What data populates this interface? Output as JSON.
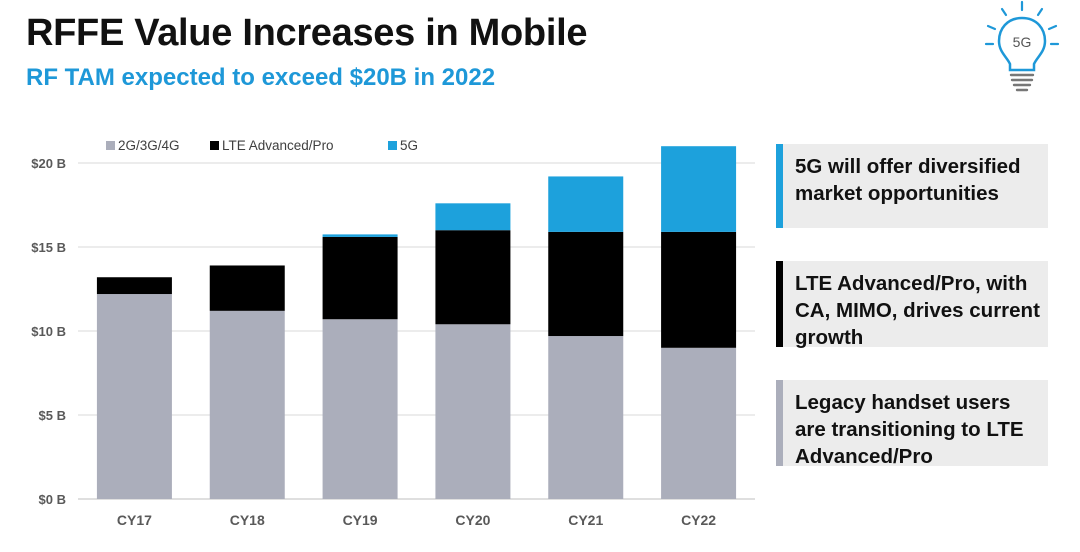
{
  "slide": {
    "title": "RFFE Value Increases in Mobile",
    "subtitle": "RF TAM expected to exceed $20B in 2022"
  },
  "logo": {
    "label": "5G",
    "icon": "lightbulb-5g-icon"
  },
  "colors": {
    "legacy": "#abaebb",
    "lte": "#000000",
    "fiveg": "#1da1dc",
    "accent": "#1e98d8"
  },
  "callouts": [
    {
      "text": "5G will offer diversified market opportunities",
      "color": "#1da1dc"
    },
    {
      "text": "LTE Advanced/Pro, with CA, MIMO, drives current growth",
      "color": "#000000"
    },
    {
      "text": "Legacy handset users are transitioning to LTE Advanced/Pro",
      "color": "#abaebb"
    }
  ],
  "chart_data": {
    "type": "bar",
    "stacked": true,
    "categories": [
      "CY17",
      "CY18",
      "CY19",
      "CY20",
      "CY21",
      "CY22"
    ],
    "series": [
      {
        "name": "2G/3G/4G",
        "values": [
          12.2,
          11.2,
          10.7,
          10.4,
          9.7,
          9.0
        ]
      },
      {
        "name": "LTE Advanced/Pro",
        "values": [
          1.0,
          2.7,
          4.9,
          5.6,
          6.2,
          6.9
        ]
      },
      {
        "name": "5G",
        "values": [
          0,
          0,
          0.15,
          1.6,
          3.3,
          5.1
        ]
      }
    ],
    "yticks": [
      "$0 B",
      "$5 B",
      "$10 B",
      "$15 B",
      "$20 B"
    ],
    "ylim": [
      0,
      21
    ],
    "grid": true,
    "legend": "top-left"
  }
}
